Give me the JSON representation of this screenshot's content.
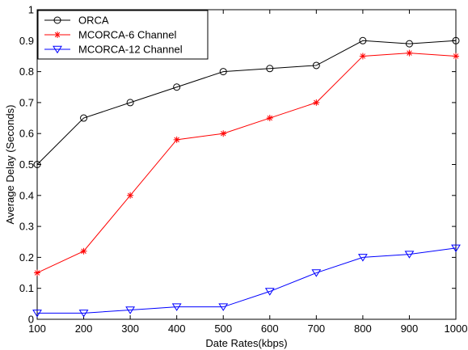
{
  "chart_data": {
    "type": "line",
    "title": "",
    "xlabel": "Date Rates(kbps)",
    "ylabel": "Average Delay (Seconds)",
    "x": [
      100,
      200,
      300,
      400,
      500,
      600,
      700,
      800,
      900,
      1000
    ],
    "xlim": [
      100,
      1000
    ],
    "ylim": [
      0,
      1
    ],
    "xticks": [
      100,
      200,
      300,
      400,
      500,
      600,
      700,
      800,
      900,
      1000
    ],
    "yticks": [
      0,
      0.1,
      0.2,
      0.3,
      0.4,
      0.5,
      0.6,
      0.7,
      0.8,
      0.9,
      1
    ],
    "ytick_labels": [
      "0",
      "0.1",
      "0.2",
      "0.3",
      "0.4",
      "0.5",
      "0.6",
      "0.7",
      "0.8",
      "0.9",
      "1"
    ],
    "grid": false,
    "legend_position": "top-left",
    "series": [
      {
        "name": "ORCA",
        "color": "#000000",
        "marker": "circle",
        "values": [
          0.5,
          0.65,
          0.7,
          0.75,
          0.8,
          0.81,
          0.82,
          0.9,
          0.89,
          0.9
        ]
      },
      {
        "name": "MCORCA-6 Channel",
        "color": "#ff0000",
        "marker": "asterisk",
        "values": [
          0.15,
          0.22,
          0.4,
          0.58,
          0.6,
          0.65,
          0.7,
          0.85,
          0.86,
          0.85
        ]
      },
      {
        "name": "MCORCA-12 Channel",
        "color": "#0000ff",
        "marker": "triangle-down",
        "values": [
          0.02,
          0.02,
          0.03,
          0.04,
          0.04,
          0.09,
          0.15,
          0.2,
          0.21,
          0.23
        ]
      }
    ]
  }
}
